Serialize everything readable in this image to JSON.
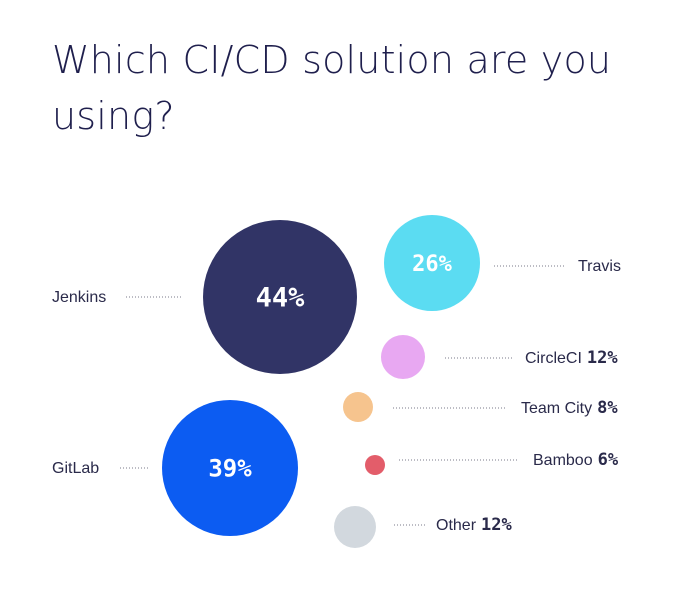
{
  "title": "Which CI/CD solution are you using?",
  "chart_data": {
    "type": "bubble",
    "title": "Which CI/CD solution are you using?",
    "unit": "%",
    "items": [
      {
        "name": "Jenkins",
        "value": 44,
        "display": "44%",
        "color": "#313466",
        "label_in_bubble": true
      },
      {
        "name": "Travis",
        "value": 26,
        "display": "26%",
        "color": "#5bdcf2",
        "label_in_bubble": true
      },
      {
        "name": "CircleCI",
        "value": 12,
        "display": "12%",
        "color": "#e8a8f2",
        "label_in_bubble": false
      },
      {
        "name": "Team City",
        "value": 8,
        "display": "8%",
        "color": "#f6c48e",
        "label_in_bubble": false
      },
      {
        "name": "Bamboo",
        "value": 6,
        "display": "6%",
        "color": "#e35d6a",
        "label_in_bubble": false
      },
      {
        "name": "GitLab",
        "value": 39,
        "display": "39%",
        "color": "#0c5cf2",
        "label_in_bubble": true
      },
      {
        "name": "Other",
        "value": 12,
        "display": "12%",
        "color": "#d2d8de",
        "label_in_bubble": false
      }
    ]
  }
}
